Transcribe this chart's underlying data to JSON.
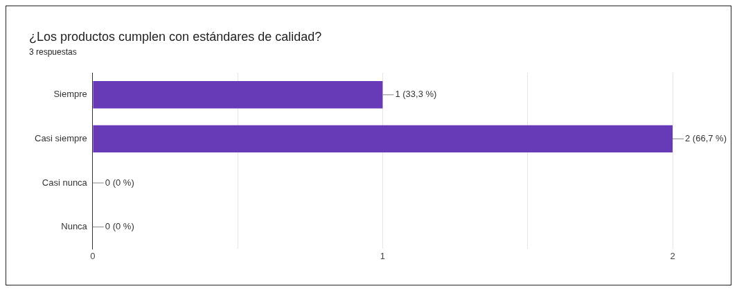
{
  "chart_data": {
    "type": "bar",
    "orientation": "horizontal",
    "title": "¿Los productos cumplen con estándares de calidad?",
    "subtitle": "3 respuestas",
    "categories": [
      "Siempre",
      "Casi siempre",
      "Casi nunca",
      "Nunca"
    ],
    "values": [
      1,
      2,
      0,
      0
    ],
    "color": "#673ab7",
    "value_labels": [
      "1 (33,3 %)",
      "2 (66,7 %)",
      "0 (0 %)",
      "0 (0 %)"
    ],
    "xlim": [
      0,
      2
    ],
    "xticks": [
      0,
      {
        "value": 0.5,
        "label": null
      },
      1,
      {
        "value": 1.5,
        "label": null
      },
      2
    ],
    "grid": "x",
    "legend": false
  }
}
